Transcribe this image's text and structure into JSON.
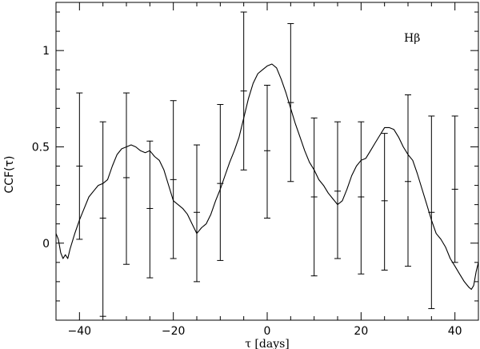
{
  "chart_data": {
    "type": "line",
    "title": "",
    "series_label": "Hβ",
    "xlabel": "τ [days]",
    "ylabel": "CCF(τ)",
    "xlim": [
      -45,
      45
    ],
    "ylim": [
      -0.4,
      1.25
    ],
    "x_ticks": [
      -40,
      -20,
      0,
      20,
      40
    ],
    "y_ticks": [
      0,
      0.5,
      1
    ],
    "x_tick_labels": [
      "−40",
      "−20",
      "0",
      "20",
      "40"
    ],
    "y_tick_labels": [
      "0",
      "0.5",
      "1"
    ],
    "x_minor_step": 5,
    "y_minor_step": 0.1,
    "grid": false,
    "line_color": "#000000",
    "curve": [
      [
        -45,
        0.05
      ],
      [
        -44.5,
        0.02
      ],
      [
        -44,
        -0.05
      ],
      [
        -43.5,
        -0.08
      ],
      [
        -43,
        -0.06
      ],
      [
        -42.5,
        -0.08
      ],
      [
        -42,
        -0.03
      ],
      [
        -41,
        0.05
      ],
      [
        -40,
        0.12
      ],
      [
        -39,
        0.18
      ],
      [
        -38,
        0.24
      ],
      [
        -37,
        0.27
      ],
      [
        -36,
        0.3
      ],
      [
        -35,
        0.31
      ],
      [
        -34,
        0.33
      ],
      [
        -33,
        0.4
      ],
      [
        -32,
        0.46
      ],
      [
        -31,
        0.49
      ],
      [
        -30,
        0.5
      ],
      [
        -29,
        0.51
      ],
      [
        -28,
        0.5
      ],
      [
        -27,
        0.48
      ],
      [
        -26,
        0.47
      ],
      [
        -25,
        0.48
      ],
      [
        -24,
        0.45
      ],
      [
        -23,
        0.43
      ],
      [
        -22,
        0.38
      ],
      [
        -21,
        0.3
      ],
      [
        -20,
        0.22
      ],
      [
        -19,
        0.2
      ],
      [
        -18,
        0.18
      ],
      [
        -17,
        0.15
      ],
      [
        -16,
        0.1
      ],
      [
        -15,
        0.05
      ],
      [
        -14,
        0.08
      ],
      [
        -13,
        0.1
      ],
      [
        -12,
        0.15
      ],
      [
        -11,
        0.22
      ],
      [
        -10,
        0.28
      ],
      [
        -9,
        0.35
      ],
      [
        -8,
        0.42
      ],
      [
        -7,
        0.48
      ],
      [
        -6,
        0.55
      ],
      [
        -5,
        0.65
      ],
      [
        -4,
        0.75
      ],
      [
        -3,
        0.83
      ],
      [
        -2,
        0.88
      ],
      [
        -1,
        0.9
      ],
      [
        0,
        0.92
      ],
      [
        1,
        0.93
      ],
      [
        2,
        0.91
      ],
      [
        3,
        0.85
      ],
      [
        4,
        0.78
      ],
      [
        5,
        0.7
      ],
      [
        6,
        0.62
      ],
      [
        7,
        0.55
      ],
      [
        8,
        0.48
      ],
      [
        9,
        0.42
      ],
      [
        10,
        0.38
      ],
      [
        11,
        0.33
      ],
      [
        12,
        0.3
      ],
      [
        13,
        0.26
      ],
      [
        14,
        0.23
      ],
      [
        15,
        0.2
      ],
      [
        16,
        0.22
      ],
      [
        17,
        0.28
      ],
      [
        18,
        0.35
      ],
      [
        19,
        0.4
      ],
      [
        20,
        0.43
      ],
      [
        21,
        0.44
      ],
      [
        22,
        0.48
      ],
      [
        23,
        0.52
      ],
      [
        24,
        0.56
      ],
      [
        25,
        0.6
      ],
      [
        26,
        0.6
      ],
      [
        27,
        0.59
      ],
      [
        28,
        0.55
      ],
      [
        29,
        0.5
      ],
      [
        30,
        0.46
      ],
      [
        31,
        0.43
      ],
      [
        32,
        0.36
      ],
      [
        33,
        0.28
      ],
      [
        34,
        0.2
      ],
      [
        35,
        0.12
      ],
      [
        36,
        0.05
      ],
      [
        37,
        0.02
      ],
      [
        38,
        -0.02
      ],
      [
        39,
        -0.08
      ],
      [
        40,
        -0.12
      ],
      [
        41,
        -0.16
      ],
      [
        42,
        -0.2
      ],
      [
        43,
        -0.23
      ],
      [
        43.5,
        -0.24
      ],
      [
        44,
        -0.22
      ],
      [
        44.5,
        -0.15
      ],
      [
        45,
        -0.1
      ]
    ],
    "error_bars": [
      {
        "x": -40,
        "y": 0.4,
        "low": 0.02,
        "high": 0.78
      },
      {
        "x": -35,
        "y": 0.13,
        "low": -0.38,
        "high": 0.63
      },
      {
        "x": -30,
        "y": 0.34,
        "low": -0.11,
        "high": 0.78
      },
      {
        "x": -25,
        "y": 0.18,
        "low": -0.18,
        "high": 0.53
      },
      {
        "x": -20,
        "y": 0.33,
        "low": -0.08,
        "high": 0.74
      },
      {
        "x": -15,
        "y": 0.16,
        "low": -0.2,
        "high": 0.51
      },
      {
        "x": -10,
        "y": 0.31,
        "low": -0.09,
        "high": 0.72
      },
      {
        "x": -5,
        "y": 0.79,
        "low": 0.38,
        "high": 1.2
      },
      {
        "x": 0,
        "y": 0.48,
        "low": 0.13,
        "high": 0.82
      },
      {
        "x": 5,
        "y": 0.73,
        "low": 0.32,
        "high": 1.14
      },
      {
        "x": 10,
        "y": 0.24,
        "low": -0.17,
        "high": 0.65
      },
      {
        "x": 15,
        "y": 0.27,
        "low": -0.08,
        "high": 0.63
      },
      {
        "x": 20,
        "y": 0.24,
        "low": -0.16,
        "high": 0.63
      },
      {
        "x": 25,
        "y": 0.22,
        "low": -0.14,
        "high": 0.57
      },
      {
        "x": 30,
        "y": 0.32,
        "low": -0.12,
        "high": 0.77
      },
      {
        "x": 35,
        "y": 0.16,
        "low": -0.34,
        "high": 0.66
      },
      {
        "x": 40,
        "y": 0.28,
        "low": -0.1,
        "high": 0.66
      }
    ]
  }
}
